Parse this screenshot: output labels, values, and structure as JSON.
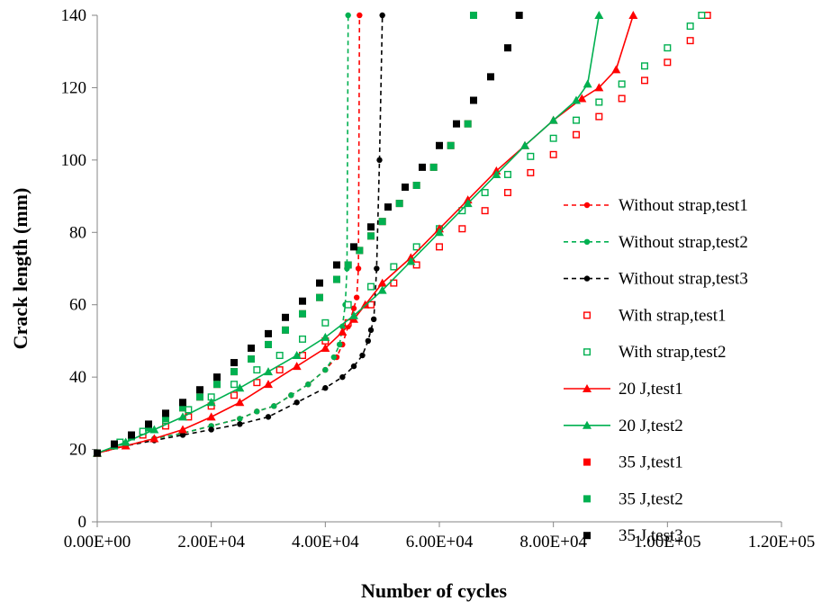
{
  "chart_data": {
    "type": "scatter",
    "title": "",
    "xlabel": "Number of cycles",
    "ylabel": "Crack length (mm)",
    "xlim": [
      0,
      120000
    ],
    "ylim": [
      0,
      140
    ],
    "x_ticks": [
      0,
      20000,
      40000,
      60000,
      80000,
      100000,
      120000
    ],
    "x_tick_labels": [
      "0.00E+00",
      "2.00E+04",
      "4.00E+04",
      "6.00E+04",
      "8.00E+04",
      "1.00E+05",
      "1.20E+05"
    ],
    "y_ticks": [
      0,
      20,
      40,
      60,
      80,
      100,
      120,
      140
    ],
    "y_tick_labels": [
      "0",
      "20",
      "40",
      "60",
      "80",
      "100",
      "120",
      "140"
    ],
    "grid": false,
    "legend_position": "right",
    "series": [
      {
        "name": "Without strap,test1",
        "color": "#ff0000",
        "line": "dashed",
        "marker": "dot",
        "x": [
          0,
          5000,
          10000,
          15000,
          20000,
          25000,
          28000,
          31000,
          34000,
          37000,
          40000,
          42000,
          43000,
          44000,
          45000,
          45500,
          45800,
          46000
        ],
        "y": [
          19,
          21,
          23,
          24.5,
          26.5,
          28.5,
          30.5,
          32,
          35,
          38,
          42,
          45.5,
          49,
          54,
          59,
          62,
          70,
          140
        ]
      },
      {
        "name": "Without strap,test2",
        "color": "#00b050",
        "line": "dashed",
        "marker": "dot",
        "x": [
          0,
          5000,
          10000,
          15000,
          20000,
          25000,
          28000,
          31000,
          34000,
          37000,
          40000,
          41500,
          42500,
          43000,
          43500,
          43800,
          44000
        ],
        "y": [
          19,
          21,
          23,
          24.5,
          26.5,
          28.5,
          30.5,
          32,
          35,
          38,
          42,
          45.5,
          49,
          54,
          60,
          70,
          140
        ]
      },
      {
        "name": "Without strap,test3",
        "color": "#000000",
        "line": "dashed",
        "marker": "dot",
        "x": [
          0,
          5000,
          10000,
          15000,
          20000,
          25000,
          30000,
          35000,
          40000,
          43000,
          45000,
          46500,
          47500,
          48000,
          48500,
          49000,
          49500,
          50000
        ],
        "y": [
          19,
          21,
          22.5,
          24,
          25.5,
          27,
          29,
          33,
          37,
          40,
          43,
          46,
          50,
          53,
          56,
          70,
          100,
          140
        ]
      },
      {
        "name": "With strap,test1",
        "color": "#ff0000",
        "line": "none",
        "marker": "square-open",
        "x": [
          0,
          4000,
          8000,
          12000,
          16000,
          20000,
          24000,
          28000,
          32000,
          36000,
          40000,
          44000,
          48000,
          52000,
          56000,
          60000,
          64000,
          68000,
          72000,
          76000,
          80000,
          84000,
          88000,
          92000,
          96000,
          100000,
          104000,
          107000
        ],
        "y": [
          19,
          21.5,
          24,
          26.5,
          29,
          32,
          35,
          38.5,
          42,
          46,
          50,
          55,
          60,
          66,
          71,
          76,
          81,
          86,
          91,
          96.5,
          101.5,
          107,
          112,
          117,
          122,
          127,
          133,
          140
        ]
      },
      {
        "name": "With strap,test2",
        "color": "#00b050",
        "line": "none",
        "marker": "square-open",
        "x": [
          0,
          4000,
          8000,
          12000,
          16000,
          20000,
          24000,
          28000,
          32000,
          36000,
          40000,
          44000,
          48000,
          52000,
          56000,
          60000,
          64000,
          68000,
          72000,
          76000,
          80000,
          84000,
          88000,
          92000,
          96000,
          100000,
          104000,
          106000
        ],
        "y": [
          19,
          22,
          25,
          28,
          31,
          34.5,
          38,
          42,
          46,
          50.5,
          55,
          60,
          65,
          70.5,
          76,
          81,
          86,
          91,
          96,
          101,
          106,
          111,
          116,
          121,
          126,
          131,
          137,
          140
        ]
      },
      {
        "name": "20 J,test1",
        "color": "#ff0000",
        "line": "solid",
        "marker": "triangle",
        "x": [
          0,
          5000,
          10000,
          15000,
          20000,
          25000,
          30000,
          35000,
          40000,
          43000,
          45000,
          47000,
          50000,
          55000,
          60000,
          65000,
          70000,
          75000,
          80000,
          85000,
          88000,
          91000,
          94000
        ],
        "y": [
          19,
          21,
          23,
          25.5,
          29,
          33,
          38,
          43,
          48,
          52.5,
          56,
          60,
          66,
          73,
          81,
          89,
          97,
          104,
          111,
          117,
          120,
          125,
          140
        ]
      },
      {
        "name": "20 J,test2",
        "color": "#00b050",
        "line": "solid",
        "marker": "triangle",
        "x": [
          0,
          5000,
          10000,
          15000,
          20000,
          25000,
          30000,
          35000,
          40000,
          45000,
          50000,
          55000,
          60000,
          65000,
          70000,
          75000,
          80000,
          84000,
          86000,
          88000
        ],
        "y": [
          19,
          22,
          25.5,
          29,
          33,
          37,
          41.5,
          46,
          51,
          57,
          64,
          72,
          80,
          88,
          96,
          104,
          111,
          116.5,
          121,
          140
        ]
      },
      {
        "name": "35 J,test1",
        "color": "#ff0000",
        "line": "none",
        "marker": "square",
        "x": [
          0,
          3000,
          6000,
          9000,
          12000,
          15000,
          18000,
          21000,
          24000,
          27000,
          30000,
          33000,
          36000,
          39000,
          42000,
          44000,
          46000,
          48000,
          50000,
          53000,
          56000,
          59000,
          62000,
          65000,
          66000
        ],
        "y": [
          19,
          21,
          23.5,
          26,
          28.5,
          31.5,
          34.5,
          38,
          41.5,
          45,
          49,
          53,
          57.5,
          62,
          67,
          71,
          75,
          79,
          83,
          88,
          93,
          98,
          104,
          110,
          140
        ]
      },
      {
        "name": "35 J,test2",
        "color": "#00b050",
        "line": "none",
        "marker": "square",
        "x": [
          0,
          3000,
          6000,
          9000,
          12000,
          15000,
          18000,
          21000,
          24000,
          27000,
          30000,
          33000,
          36000,
          39000,
          42000,
          44000,
          46000,
          48000,
          50000,
          53000,
          56000,
          59000,
          62000,
          65000,
          66000
        ],
        "y": [
          19,
          21,
          23.5,
          26,
          28.5,
          31.5,
          34.5,
          38,
          41.5,
          45,
          49,
          53,
          57.5,
          62,
          67,
          71,
          75,
          79,
          83,
          88,
          93,
          98,
          104,
          110,
          140
        ]
      },
      {
        "name": "35 J,test3",
        "color": "#000000",
        "line": "none",
        "marker": "square",
        "x": [
          0,
          3000,
          6000,
          9000,
          12000,
          15000,
          18000,
          21000,
          24000,
          27000,
          30000,
          33000,
          36000,
          39000,
          42000,
          45000,
          48000,
          51000,
          54000,
          57000,
          60000,
          63000,
          66000,
          69000,
          72000,
          74000
        ],
        "y": [
          19,
          21.5,
          24,
          27,
          30,
          33,
          36.5,
          40,
          44,
          48,
          52,
          56.5,
          61,
          66,
          71,
          76,
          81.5,
          87,
          92.5,
          98,
          104,
          110,
          116.5,
          123,
          131,
          140
        ]
      }
    ]
  }
}
